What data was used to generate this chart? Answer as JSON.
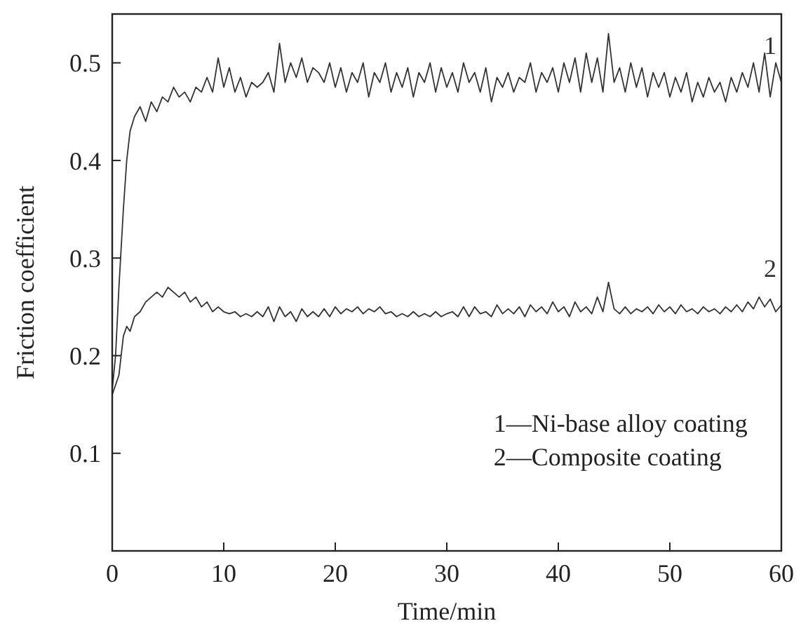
{
  "chart_data": {
    "type": "line",
    "xlabel": "Time/min",
    "ylabel": "Friction coefficient",
    "xlim": [
      0,
      60
    ],
    "ylim": [
      0,
      0.55
    ],
    "xticks": [
      0,
      10,
      20,
      30,
      40,
      50,
      60
    ],
    "yticks": [
      0.1,
      0.2,
      0.3,
      0.4,
      0.5
    ],
    "grid": false,
    "legend": "right",
    "line_style": "solid",
    "marker": "none",
    "x": [
      0,
      0.3,
      0.6,
      1,
      1.3,
      1.6,
      2,
      2.5,
      3,
      3.5,
      4,
      4.5,
      5,
      5.5,
      6,
      6.5,
      7,
      7.5,
      8,
      8.5,
      9,
      9.5,
      10,
      10.5,
      11,
      11.5,
      12,
      12.5,
      13,
      13.5,
      14,
      14.5,
      15,
      15.5,
      16,
      16.5,
      17,
      17.5,
      18,
      18.5,
      19,
      19.5,
      20,
      20.5,
      21,
      21.5,
      22,
      22.5,
      23,
      23.5,
      24,
      24.5,
      25,
      25.5,
      26,
      26.5,
      27,
      27.5,
      28,
      28.5,
      29,
      29.5,
      30,
      30.5,
      31,
      31.5,
      32,
      32.5,
      33,
      33.5,
      34,
      34.5,
      35,
      35.5,
      36,
      36.5,
      37,
      37.5,
      38,
      38.5,
      39,
      39.5,
      40,
      40.5,
      41,
      41.5,
      42,
      42.5,
      43,
      43.5,
      44,
      44.5,
      45,
      45.5,
      46,
      46.5,
      47,
      47.5,
      48,
      48.5,
      49,
      49.5,
      50,
      50.5,
      51,
      51.5,
      52,
      52.5,
      53,
      53.5,
      54,
      54.5,
      55,
      55.5,
      56,
      56.5,
      57,
      57.5,
      58,
      58.5,
      59,
      59.5,
      60
    ],
    "series": [
      {
        "name": "1",
        "color": "#333333",
        "values": [
          0.165,
          0.2,
          0.27,
          0.35,
          0.4,
          0.43,
          0.445,
          0.455,
          0.44,
          0.46,
          0.45,
          0.465,
          0.46,
          0.475,
          0.465,
          0.47,
          0.46,
          0.475,
          0.47,
          0.485,
          0.47,
          0.505,
          0.475,
          0.495,
          0.47,
          0.485,
          0.465,
          0.48,
          0.475,
          0.48,
          0.49,
          0.47,
          0.52,
          0.48,
          0.5,
          0.485,
          0.505,
          0.48,
          0.495,
          0.49,
          0.48,
          0.5,
          0.475,
          0.495,
          0.47,
          0.49,
          0.48,
          0.5,
          0.465,
          0.49,
          0.48,
          0.5,
          0.47,
          0.49,
          0.475,
          0.495,
          0.465,
          0.49,
          0.48,
          0.5,
          0.47,
          0.495,
          0.475,
          0.49,
          0.47,
          0.5,
          0.48,
          0.49,
          0.47,
          0.495,
          0.46,
          0.485,
          0.475,
          0.49,
          0.47,
          0.485,
          0.48,
          0.5,
          0.47,
          0.49,
          0.48,
          0.495,
          0.47,
          0.5,
          0.48,
          0.505,
          0.47,
          0.51,
          0.48,
          0.505,
          0.47,
          0.53,
          0.48,
          0.495,
          0.47,
          0.5,
          0.475,
          0.495,
          0.465,
          0.49,
          0.475,
          0.49,
          0.465,
          0.485,
          0.47,
          0.49,
          0.46,
          0.48,
          0.465,
          0.485,
          0.47,
          0.48,
          0.46,
          0.485,
          0.47,
          0.49,
          0.475,
          0.5,
          0.47,
          0.51,
          0.465,
          0.5,
          0.48
        ]
      },
      {
        "name": "2",
        "color": "#333333",
        "values": [
          0.16,
          0.17,
          0.18,
          0.22,
          0.23,
          0.225,
          0.24,
          0.245,
          0.255,
          0.26,
          0.265,
          0.26,
          0.27,
          0.265,
          0.26,
          0.265,
          0.255,
          0.26,
          0.25,
          0.255,
          0.245,
          0.25,
          0.245,
          0.243,
          0.245,
          0.24,
          0.243,
          0.24,
          0.245,
          0.24,
          0.25,
          0.235,
          0.25,
          0.24,
          0.245,
          0.235,
          0.248,
          0.24,
          0.245,
          0.24,
          0.248,
          0.24,
          0.25,
          0.243,
          0.248,
          0.245,
          0.25,
          0.243,
          0.248,
          0.245,
          0.25,
          0.243,
          0.245,
          0.24,
          0.243,
          0.24,
          0.245,
          0.24,
          0.243,
          0.24,
          0.245,
          0.24,
          0.243,
          0.245,
          0.24,
          0.25,
          0.24,
          0.25,
          0.243,
          0.245,
          0.24,
          0.252,
          0.243,
          0.248,
          0.243,
          0.25,
          0.24,
          0.252,
          0.245,
          0.25,
          0.243,
          0.255,
          0.245,
          0.25,
          0.24,
          0.255,
          0.245,
          0.25,
          0.243,
          0.26,
          0.245,
          0.275,
          0.248,
          0.243,
          0.25,
          0.243,
          0.248,
          0.245,
          0.25,
          0.243,
          0.252,
          0.245,
          0.25,
          0.243,
          0.252,
          0.245,
          0.248,
          0.243,
          0.25,
          0.245,
          0.248,
          0.243,
          0.25,
          0.245,
          0.252,
          0.245,
          0.255,
          0.248,
          0.26,
          0.25,
          0.258,
          0.245,
          0.252
        ]
      }
    ],
    "annotations": [
      "1—Ni-base alloy coating",
      "2—Composite coating"
    ]
  }
}
